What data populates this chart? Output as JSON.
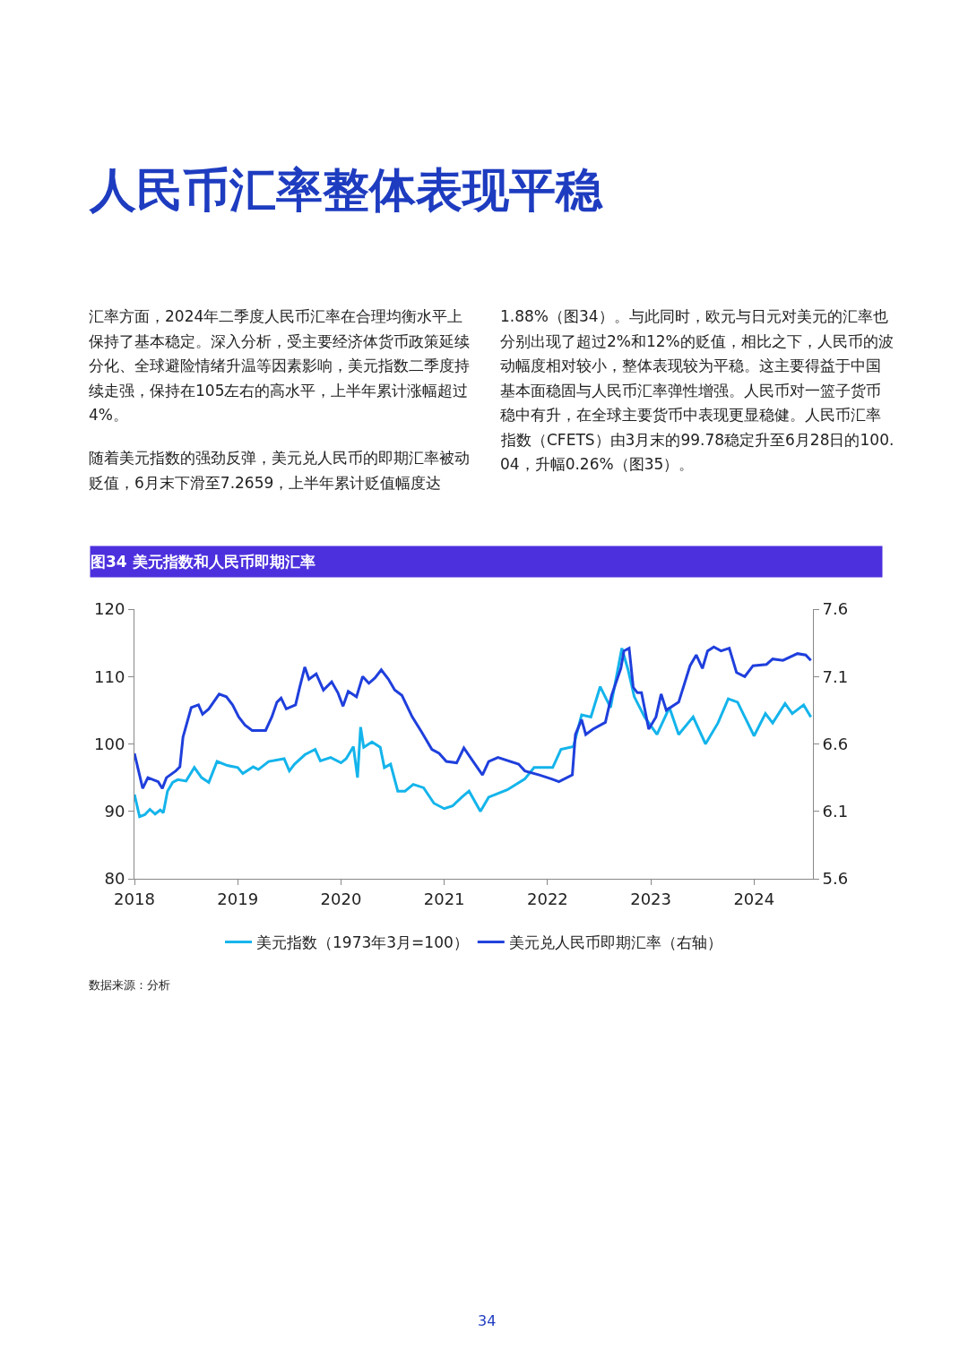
{
  "chart_data": {
    "type": "line",
    "title": "人民币汇率整体表现平稳",
    "subtitle": "图34 美元指数和人民币即期汇率",
    "annotations": [
      "汇率方面，2024年二季度人民币汇率在合理均衡水平上保持了基本稳定。深入分析，受主要经济体货币政策延续分化、全球避险情绪升温等因素影响，美元指数二季度持续走强，保持在105左右的高水平，上半年累计涨幅超过4%。",
      "随着美元指数的强劲反弹，美元兑人民币的即期汇率被动贬值，6月末下滑至7.2659，上半年累计贬值幅度达",
      "1.88%（图34）。与此同时，欧元与日元对美元的汇率也分别出现了超过2%和12%的贬值，相比之下，人民币的波动幅度相对较小，整体表现较为平稳。这主要得益于中国基本面稳固与人民币汇率弹性增强。人民币对一篮子货币稳中有升，在全球主要货币中表现更显稳健。人民币汇率指数（CFETS）由3月末的99.78稳定升至6月28日的100.04，升幅0.26%（图35）。",
      "数据来源：分析",
      "34"
    ],
    "xlim": [
      2018,
      2024.57
    ],
    "xticks": [
      2018,
      2019,
      2020,
      2021,
      2022,
      2023,
      2024
    ],
    "ylim": [
      80,
      120
    ],
    "yticks": [
      80,
      90,
      100,
      110,
      120
    ],
    "y2lim": [
      5.6,
      7.6
    ],
    "y2ticks": [
      5.6,
      6.1,
      6.6,
      7.1,
      7.6
    ],
    "grid": false,
    "legend": "bottom",
    "marker": "none",
    "line_style": "solid",
    "series": [
      {
        "name": "美元指数（1973年3月=100）",
        "color": "#14b4eb",
        "x": [
          2018.0,
          2018.05,
          2018.1,
          2018.15,
          2018.2,
          2018.25,
          2018.28,
          2018.32,
          2018.37,
          2018.42,
          2018.5,
          2018.58,
          2018.65,
          2018.72,
          2018.8,
          2018.9,
          2019.0,
          2019.05,
          2019.15,
          2019.2,
          2019.3,
          2019.45,
          2019.5,
          2019.55,
          2019.65,
          2019.75,
          2019.8,
          2019.9,
          2020.0,
          2020.05,
          2020.12,
          2020.16,
          2020.19,
          2020.22,
          2020.3,
          2020.38,
          2020.42,
          2020.48,
          2020.55,
          2020.62,
          2020.7,
          2020.8,
          2020.9,
          2021.0,
          2021.08,
          2021.17,
          2021.24,
          2021.35,
          2021.43,
          2021.61,
          2021.78,
          2021.87,
          2022.05,
          2022.13,
          2022.25,
          2022.33,
          2022.42,
          2022.51,
          2022.61,
          2022.72,
          2022.78,
          2022.84,
          2022.94,
          2023.06,
          2023.18,
          2023.27,
          2023.41,
          2023.53,
          2023.65,
          2023.75,
          2023.84,
          2023.91,
          2024.0,
          2024.11,
          2024.18,
          2024.3,
          2024.37,
          2024.48,
          2024.55
        ],
        "values": [
          92.5,
          89.2,
          89.5,
          90.3,
          89.6,
          90.2,
          89.8,
          93,
          94.3,
          94.7,
          94.5,
          96.5,
          95,
          94.3,
          97.4,
          96.8,
          96.5,
          95.6,
          96.6,
          96.2,
          97.4,
          97.8,
          96,
          97,
          98.4,
          99.2,
          97.5,
          98,
          97.2,
          97.8,
          99.6,
          95,
          102.5,
          99.5,
          100.3,
          99.5,
          96.5,
          97,
          93,
          93,
          94,
          93.5,
          91.2,
          90.4,
          90.8,
          92.1,
          93,
          90,
          92.1,
          93.2,
          94.8,
          96.5,
          96.5,
          99.2,
          99.6,
          104.3,
          104,
          108.5,
          105.4,
          114.2,
          111,
          107,
          104,
          101.4,
          105.4,
          101.4,
          104,
          100,
          103.1,
          106.7,
          106.2,
          104,
          101.2,
          104.5,
          103.1,
          106,
          104.5,
          105.8,
          104
        ]
      },
      {
        "name": "美元兑人民币即期汇率（右轴）",
        "color": "#1f3fdc",
        "axis": "y2",
        "x": [
          2018.0,
          2018.04,
          2018.08,
          2018.13,
          2018.23,
          2018.27,
          2018.31,
          2018.4,
          2018.44,
          2018.47,
          2018.55,
          2018.62,
          2018.66,
          2018.72,
          2018.82,
          2018.89,
          2018.95,
          2019.01,
          2019.07,
          2019.14,
          2019.27,
          2019.33,
          2019.38,
          2019.42,
          2019.47,
          2019.56,
          2019.6,
          2019.65,
          2019.69,
          2019.76,
          2019.83,
          2019.91,
          2019.97,
          2020.02,
          2020.07,
          2020.15,
          2020.21,
          2020.27,
          2020.33,
          2020.39,
          2020.46,
          2020.52,
          2020.59,
          2020.69,
          2020.78,
          2020.88,
          2020.95,
          2021.02,
          2021.12,
          2021.19,
          2021.28,
          2021.37,
          2021.43,
          2021.52,
          2021.72,
          2021.78,
          2021.92,
          2022.04,
          2022.11,
          2022.24,
          2022.27,
          2022.33,
          2022.37,
          2022.44,
          2022.56,
          2022.62,
          2022.71,
          2022.74,
          2022.79,
          2022.83,
          2022.87,
          2022.91,
          2022.98,
          2023.05,
          2023.1,
          2023.15,
          2023.27,
          2023.38,
          2023.44,
          2023.5,
          2023.55,
          2023.61,
          2023.68,
          2023.76,
          2023.83,
          2023.91,
          2023.99,
          2024.12,
          2024.18,
          2024.28,
          2024.42,
          2024.5,
          2024.55
        ],
        "values": [
          6.53,
          6.4,
          6.27,
          6.35,
          6.32,
          6.27,
          6.35,
          6.4,
          6.43,
          6.65,
          6.87,
          6.89,
          6.82,
          6.86,
          6.97,
          6.95,
          6.89,
          6.8,
          6.74,
          6.7,
          6.7,
          6.8,
          6.91,
          6.94,
          6.86,
          6.89,
          7.02,
          7.17,
          7.08,
          7.12,
          7.0,
          7.06,
          6.98,
          6.88,
          6.99,
          6.95,
          7.1,
          7.05,
          7.09,
          7.15,
          7.08,
          7.0,
          6.96,
          6.8,
          6.69,
          6.56,
          6.53,
          6.47,
          6.46,
          6.57,
          6.47,
          6.37,
          6.47,
          6.5,
          6.45,
          6.4,
          6.37,
          6.34,
          6.32,
          6.37,
          6.67,
          6.78,
          6.67,
          6.71,
          6.76,
          6.96,
          7.16,
          7.29,
          7.31,
          7.02,
          6.98,
          6.98,
          6.71,
          6.8,
          6.97,
          6.85,
          6.91,
          7.18,
          7.26,
          7.16,
          7.29,
          7.32,
          7.29,
          7.31,
          7.13,
          7.1,
          7.18,
          7.19,
          7.23,
          7.22,
          7.27,
          7.26,
          7.22
        ]
      }
    ]
  }
}
